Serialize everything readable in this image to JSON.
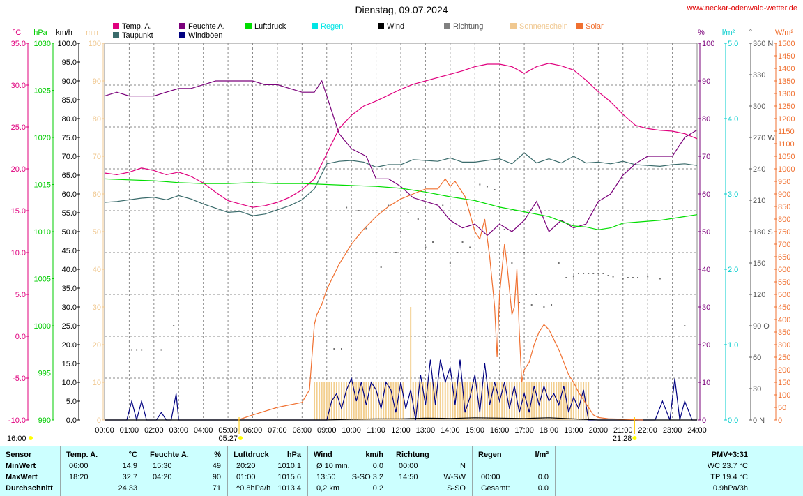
{
  "title": "Dienstag, 09.07.2024",
  "site": "www.neckar-odenwald-wetter.de",
  "legend": [
    {
      "label": "Temp. A.",
      "color": "#e0007e"
    },
    {
      "label": "Taupunkt",
      "color": "#3a6b6b"
    },
    {
      "label": "Feuchte A.",
      "color": "#7a007a"
    },
    {
      "label": "Windböen",
      "color": "#000080"
    },
    {
      "label": "Luftdruck",
      "color": "#00dd00"
    },
    {
      "label": "Regen",
      "color": "#00e5e5"
    },
    {
      "label": "Wind",
      "color": "#000000"
    },
    {
      "label": "Richtung",
      "color": "#808080"
    },
    {
      "label": "Sonnenschein",
      "color": "#f0c890"
    },
    {
      "label": "Solar",
      "color": "#f07030"
    }
  ],
  "axis_units": {
    "temp": "°C",
    "pressure": "hPa",
    "wind": "km/h",
    "sun": "min",
    "humidity": "%",
    "rain": "l/m²",
    "direction": "°",
    "solar": "W/m²"
  },
  "axis_ticks": {
    "temp": [
      "35.0",
      "30.0",
      "25.0",
      "20.0",
      "15.0",
      "10.0",
      "5.0",
      "0.0",
      "-5.0",
      "-10.0"
    ],
    "pressure": [
      "1030",
      "1025",
      "1020",
      "1015",
      "1010",
      "1005",
      "1000",
      "995",
      "990"
    ],
    "wind": [
      "100.0",
      "95.0",
      "90.0",
      "85.0",
      "80.0",
      "75.0",
      "70.0",
      "65.0",
      "60.0",
      "55.0",
      "50.0",
      "45.0",
      "40.0",
      "35.0",
      "30.0",
      "25.0",
      "20.0",
      "15.0",
      "10.0",
      "5.0",
      "0.0"
    ],
    "sun": [
      "100",
      "90",
      "80",
      "70",
      "60",
      "50",
      "40",
      "30",
      "20",
      "10",
      "0"
    ],
    "humidity": [
      "100",
      "90",
      "80",
      "70",
      "60",
      "50",
      "40",
      "30",
      "20",
      "10",
      "0"
    ],
    "rain": [
      "5.0",
      "4.0",
      "3.0",
      "2.0",
      "1.0",
      "0.0"
    ],
    "direction": [
      "360 N",
      "330",
      "300",
      "270 W",
      "240",
      "210",
      "180 S",
      "150",
      "120",
      "90 O",
      "60",
      "30",
      "0 N"
    ],
    "solar": [
      "1500",
      "1450",
      "1400",
      "1350",
      "1300",
      "1250",
      "1200",
      "1150",
      "1100",
      "1050",
      "1000",
      "950",
      "900",
      "850",
      "800",
      "750",
      "700",
      "650",
      "600",
      "550",
      "500",
      "450",
      "400",
      "350",
      "300",
      "250",
      "200",
      "150",
      "100",
      "50",
      "0"
    ],
    "x": [
      "00:00",
      "01:00",
      "02:00",
      "03:00",
      "04:00",
      "05:00",
      "06:00",
      "07:00",
      "08:00",
      "09:00",
      "10:00",
      "11:00",
      "12:00",
      "13:00",
      "14:00",
      "15:00",
      "16:00",
      "17:00",
      "18:00",
      "19:00",
      "20:00",
      "21:00",
      "22:00",
      "23:00",
      "24:00"
    ]
  },
  "sun_events": {
    "left_label": "16:00",
    "sunrise": "05:27",
    "sunset": "21:28"
  },
  "chart_data": {
    "type": "line",
    "x_unit": "hours",
    "xlim": [
      0,
      24
    ],
    "series": [
      {
        "name": "Temp. A.",
        "unit": "°C",
        "ylim": [
          -10,
          35
        ],
        "x": [
          0,
          0.5,
          1,
          1.5,
          2,
          2.5,
          3,
          3.5,
          4,
          4.5,
          5,
          5.5,
          6,
          6.5,
          7,
          7.5,
          8,
          8.5,
          9,
          9.5,
          10,
          10.5,
          11,
          11.5,
          12,
          12.5,
          13,
          13.5,
          14,
          14.5,
          15,
          15.5,
          16,
          16.5,
          17,
          17.5,
          18,
          18.5,
          19,
          19.5,
          20,
          20.5,
          21,
          21.5,
          22,
          22.5,
          23,
          23.5,
          24
        ],
        "y": [
          19.5,
          19.3,
          19.6,
          20.1,
          19.8,
          19.3,
          19.6,
          19.1,
          18.3,
          17.2,
          16.2,
          15.8,
          15.4,
          15.6,
          16,
          16.6,
          17.5,
          18.8,
          21.8,
          24.8,
          26.4,
          27.5,
          28.1,
          28.8,
          29.5,
          30.1,
          30.5,
          30.9,
          31.3,
          31.7,
          32.2,
          32.5,
          32.5,
          32.2,
          31.4,
          32.2,
          32.6,
          32.3,
          31.8,
          30.6,
          29.2,
          28,
          26.5,
          25.2,
          24.8,
          24.6,
          24.5,
          24.2,
          23.6
        ]
      },
      {
        "name": "Taupunkt",
        "unit": "°C",
        "ylim": [
          -10,
          35
        ],
        "x": [
          0,
          0.5,
          1,
          1.5,
          2,
          2.5,
          3,
          3.5,
          4,
          4.5,
          5,
          5.5,
          6,
          6.5,
          7,
          7.5,
          8,
          8.5,
          9,
          9.5,
          10,
          10.5,
          11,
          11.5,
          12,
          12.5,
          13,
          13.5,
          14,
          14.5,
          15,
          15.5,
          16,
          16.5,
          17,
          17.5,
          18,
          18.5,
          19,
          19.5,
          20,
          20.5,
          21,
          21.5,
          22,
          22.5,
          23,
          23.5,
          24
        ],
        "y": [
          16,
          16.1,
          16.3,
          16.5,
          16.6,
          16.3,
          16.8,
          16.4,
          15.8,
          15.3,
          14.8,
          14.9,
          14.4,
          14.6,
          15.1,
          15.6,
          16.3,
          17.6,
          20.6,
          20.9,
          21,
          20.8,
          20.2,
          20.5,
          20.5,
          21.1,
          21,
          20.9,
          21.3,
          20.8,
          20.8,
          21,
          21.2,
          20.6,
          21.9,
          20.7,
          21.2,
          20.7,
          21.5,
          20.7,
          20.8,
          20.6,
          20.9,
          20.5,
          20.4,
          20.3,
          20.5,
          20.6,
          20.4
        ]
      },
      {
        "name": "Feuchte A.",
        "unit": "%",
        "ylim": [
          0,
          100
        ],
        "x": [
          0,
          0.5,
          1,
          1.5,
          2,
          2.5,
          3,
          3.5,
          4,
          4.5,
          5,
          5.5,
          6,
          6.5,
          7,
          7.5,
          8,
          8.5,
          8.8,
          9,
          9.5,
          10,
          10.3,
          10.6,
          11,
          11.5,
          12,
          12.5,
          13,
          13.5,
          14,
          14.5,
          15,
          15.5,
          16,
          16.5,
          17,
          17.5,
          18,
          18.5,
          19,
          19.5,
          20,
          20.5,
          21,
          21.5,
          22,
          22.5,
          23,
          23.5,
          24
        ],
        "y": [
          86,
          87,
          86,
          86,
          86,
          87,
          88,
          88,
          89,
          90,
          90,
          90,
          90,
          89,
          89,
          88,
          87,
          87,
          90,
          86,
          76,
          72,
          71,
          70,
          64,
          64,
          62,
          59,
          58,
          57,
          53,
          51,
          52,
          49,
          52,
          50,
          53,
          58,
          50,
          53,
          51,
          52,
          58,
          60,
          65,
          68,
          70,
          70,
          70,
          75,
          77
        ]
      },
      {
        "name": "Luftdruck",
        "unit": "hPa",
        "ylim": [
          990,
          1030
        ],
        "x": [
          0,
          1,
          2,
          3,
          4,
          5,
          6,
          7,
          8,
          9,
          10,
          11,
          12,
          13,
          14,
          15,
          16,
          17,
          18,
          19,
          19.5,
          20,
          20.5,
          21,
          21.5,
          22,
          22.5,
          23,
          23.5,
          24
        ],
        "y": [
          1015.6,
          1015.5,
          1015.4,
          1015.2,
          1015.1,
          1015.1,
          1015.2,
          1015.1,
          1015.1,
          1015,
          1014.9,
          1014.8,
          1014.6,
          1014.2,
          1013.7,
          1013.3,
          1012.6,
          1012.1,
          1011.6,
          1010.6,
          1010.5,
          1010.2,
          1010.4,
          1010.9,
          1011,
          1011.1,
          1011.2,
          1011.4,
          1011.6,
          1011.8
        ]
      },
      {
        "name": "Windböen",
        "unit": "km/h",
        "ylim": [
          0,
          100
        ],
        "x": [
          0,
          0.9,
          1.1,
          1.3,
          1.5,
          1.7,
          2.1,
          2.3,
          2.5,
          2.7,
          2.9,
          3,
          3.2,
          8.5,
          9,
          9.2,
          9.4,
          9.6,
          9.8,
          10,
          10.2,
          10.4,
          10.6,
          10.8,
          11,
          11.2,
          11.4,
          11.6,
          11.8,
          12,
          12.2,
          12.4,
          12.6,
          12.8,
          13,
          13.2,
          13.4,
          13.6,
          13.8,
          14,
          14.2,
          14.4,
          14.6,
          14.8,
          15,
          15.2,
          15.4,
          15.6,
          15.8,
          16,
          16.2,
          16.4,
          16.6,
          16.8,
          17,
          17.2,
          17.4,
          17.6,
          17.8,
          18,
          18.2,
          18.4,
          18.6,
          18.8,
          19,
          19.2,
          19.4,
          19.6,
          19.8,
          20,
          22,
          22.3,
          22.6,
          22.9,
          23.1,
          23.3,
          23.5,
          23.8,
          24
        ],
        "y": [
          0,
          0,
          5,
          0,
          5,
          0,
          0,
          2,
          0,
          0,
          7,
          0,
          0,
          0,
          0,
          5,
          7,
          3,
          8,
          11,
          5,
          10,
          4,
          10,
          8,
          3,
          10,
          8,
          2,
          10,
          3,
          8,
          0,
          12,
          4,
          16,
          4,
          16,
          10,
          14,
          4,
          16,
          2,
          6,
          12,
          2,
          15,
          4,
          10,
          5,
          10,
          3,
          9,
          2,
          7,
          2,
          9,
          4,
          9,
          5,
          7,
          4,
          9,
          2,
          6,
          3,
          8,
          0,
          0,
          0,
          0,
          0,
          5,
          0,
          11,
          0,
          5,
          0,
          0
        ]
      },
      {
        "name": "Wind",
        "unit": "km/h",
        "ylim": [
          0,
          100
        ],
        "x": [
          0,
          1,
          2,
          9,
          10,
          11,
          12,
          13,
          14,
          15,
          16,
          17,
          18,
          19,
          20,
          21,
          22,
          23,
          24
        ],
        "y": [
          0,
          0,
          0,
          0,
          0.2,
          0.3,
          0.3,
          0.5,
          0.4,
          0.6,
          0.5,
          0.4,
          0.6,
          0.3,
          0,
          0,
          0,
          0,
          0
        ]
      },
      {
        "name": "Solar",
        "unit": "W/m²",
        "ylim": [
          0,
          1500
        ],
        "x": [
          5.4,
          6,
          7,
          8,
          8.3,
          8.5,
          8.6,
          8.8,
          9,
          9.5,
          10,
          10.5,
          11,
          11.5,
          12,
          12.5,
          13,
          13.5,
          13.8,
          14,
          14.2,
          14.4,
          14.6,
          14.8,
          15,
          15.2,
          15.4,
          15.6,
          15.8,
          15.9,
          16,
          16.1,
          16.2,
          16.3,
          16.5,
          16.6,
          16.7,
          16.8,
          16.9,
          17,
          17.2,
          17.4,
          17.6,
          17.8,
          18,
          18.2,
          18.4,
          18.6,
          18.8,
          19,
          19.2,
          19.4,
          19.6,
          19.8,
          20,
          20.4,
          21,
          21.5,
          21.8
        ],
        "y": [
          0,
          20,
          50,
          70,
          120,
          380,
          420,
          460,
          520,
          620,
          700,
          760,
          810,
          850,
          880,
          900,
          920,
          920,
          960,
          930,
          950,
          920,
          890,
          820,
          750,
          720,
          800,
          650,
          450,
          250,
          500,
          600,
          700,
          620,
          420,
          450,
          600,
          350,
          150,
          200,
          230,
          300,
          350,
          380,
          360,
          320,
          280,
          230,
          180,
          150,
          110,
          80,
          50,
          20,
          10,
          5,
          3,
          1,
          0
        ]
      },
      {
        "name": "Sonnenschein",
        "unit": "min",
        "ylim": [
          0,
          100
        ],
        "bars": {
          "from": 8.5,
          "to": 19.6,
          "step": 0.1,
          "value": 10,
          "gap_from": 12.1,
          "gap_to": 12.4
        },
        "peak": {
          "x": 12.4,
          "y": 30
        }
      },
      {
        "name": "Richtung",
        "unit": "°",
        "ylim": [
          0,
          360
        ],
        "x": [
          1.1,
          1.3,
          1.5,
          2.3,
          2.8,
          9.3,
          9.6,
          9.8,
          10.3,
          10.6,
          11,
          11.2,
          11.5,
          11.8,
          12,
          12.3,
          12.7,
          13,
          13.3,
          13.7,
          14,
          14.3,
          14.5,
          14.8,
          15.2,
          15.5,
          15.8,
          16.2,
          16.5,
          16.8,
          17,
          17.3,
          17.5,
          17.8,
          18.1,
          18.4,
          18.7,
          19,
          19.2,
          19.4,
          19.6,
          19.8,
          20,
          20.2,
          20.4,
          20.6,
          21,
          21.2,
          21.4,
          21.6,
          22,
          22.5,
          23,
          23.5
        ],
        "y": [
          67,
          67,
          67,
          67,
          90,
          68,
          68,
          203,
          200,
          183,
          160,
          146,
          205,
          160,
          180,
          198,
          192,
          165,
          170,
          205,
          150,
          160,
          170,
          165,
          225,
          223,
          220,
          182,
          150,
          112,
          160,
          110,
          120,
          108,
          110,
          150,
          136,
          137,
          140,
          140,
          140,
          140,
          140,
          140,
          138,
          137,
          135,
          136,
          136,
          136,
          137,
          135,
          90,
          90
        ]
      }
    ]
  },
  "table": {
    "rows": [
      "Sensor",
      "MinWert",
      "MaxWert",
      "Durchschnitt"
    ],
    "columns": [
      {
        "title": "Temp. A.",
        "unit": "°C",
        "min": [
          "06:00",
          "14.9"
        ],
        "max": [
          "18:20",
          "32.7"
        ],
        "avg": [
          "",
          "24.33"
        ]
      },
      {
        "title": "Feuchte A.",
        "unit": "%",
        "min": [
          "15:30",
          "49"
        ],
        "max": [
          "04:20",
          "90"
        ],
        "avg": [
          "",
          "71"
        ]
      },
      {
        "title": "Luftdruck",
        "unit": "hPa",
        "min": [
          "20:20",
          "1010.1"
        ],
        "max": [
          "01:00",
          "1015.6"
        ],
        "avg": [
          "^0.8hPa/h",
          "1013.4"
        ]
      },
      {
        "title": "Wind",
        "unit": "km/h",
        "min": [
          "Ø 10 min.",
          "0.0"
        ],
        "max": [
          "13:50",
          "S-SO 3.2"
        ],
        "avg": [
          "0,2 km",
          "0.2"
        ]
      },
      {
        "title": "Richtung",
        "unit": "",
        "min": [
          "00:00",
          "N"
        ],
        "max": [
          "14:50",
          "W-SW"
        ],
        "avg": [
          "",
          "S-SO"
        ]
      },
      {
        "title": "Regen",
        "unit": "l/m²",
        "min": [
          "",
          ""
        ],
        "max": [
          "00:00",
          "0.0"
        ],
        "avg": [
          "Gesamt:",
          "0.0"
        ]
      },
      {
        "title": "PMV+3:31",
        "unit": "",
        "min": [
          "",
          "WC 23.7 °C"
        ],
        "max": [
          "",
          "TP 19.4 °C"
        ],
        "avg": [
          "",
          "0.9hPa/3h"
        ]
      }
    ]
  }
}
